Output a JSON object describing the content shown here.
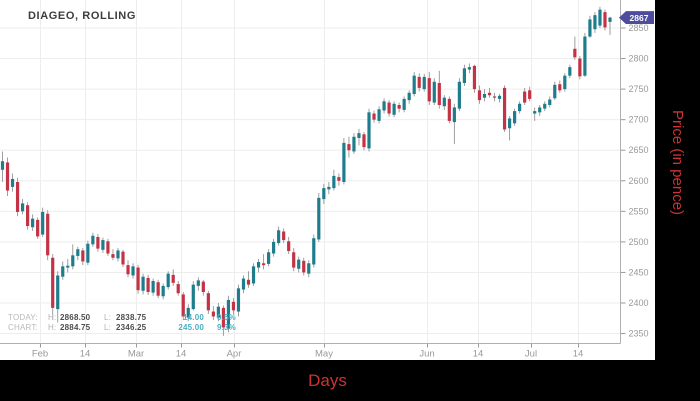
{
  "title": "DIAGEO, ROLLING",
  "price_badge": "2867",
  "axis_titles": {
    "x": "Days",
    "y": "Price (in pence)"
  },
  "legend": {
    "today": {
      "label": "TODAY:",
      "h_label": "H:",
      "h": "2868.50",
      "l_label": "L:",
      "l": "2838.75",
      "change": "14.00",
      "pct": "0.5%"
    },
    "chart": {
      "label": "CHART:",
      "h_label": "H:",
      "h": "2884.75",
      "l_label": "L:",
      "l": "2346.25",
      "change": "245.00",
      "pct": "9.3%"
    }
  },
  "colors": {
    "up_candle": "#1e7d8c",
    "down_candle": "#c43246",
    "wick": "#949494",
    "grid": "#ededed",
    "axis": "#b0b0b0",
    "tick_text": "#999999",
    "badge_bg": "#4e4c9d",
    "axis_title_red": "#cc3333",
    "change_teal": "#49b0c2"
  },
  "chart_data": {
    "type": "candlestick",
    "title": "DIAGEO, ROLLING",
    "xlabel": "Days",
    "ylabel": "Price (in pence)",
    "ylim": [
      2335,
      2896
    ],
    "grid": true,
    "last_price": 2867,
    "today_high": 2868.5,
    "today_low": 2838.75,
    "chart_high": 2884.75,
    "chart_low": 2346.25,
    "y_ticks": [
      2850,
      2800,
      2750,
      2700,
      2650,
      2600,
      2550,
      2500,
      2450,
      2400,
      2350
    ],
    "x_ticks": [
      {
        "label": "Feb",
        "x": 40
      },
      {
        "label": "14",
        "x": 85
      },
      {
        "label": "Mar",
        "x": 136
      },
      {
        "label": "14",
        "x": 181
      },
      {
        "label": "Apr",
        "x": 234
      },
      {
        "label": "May",
        "x": 324
      },
      {
        "label": "Jun",
        "x": 427
      },
      {
        "label": "14",
        "x": 478
      },
      {
        "label": "Jul",
        "x": 531
      },
      {
        "label": "14",
        "x": 578
      }
    ],
    "candles": [
      [
        2618,
        2648,
        2598,
        2632
      ],
      [
        2630,
        2638,
        2575,
        2584
      ],
      [
        2590,
        2612,
        2582,
        2603
      ],
      [
        2598,
        2605,
        2542,
        2549
      ],
      [
        2550,
        2570,
        2545,
        2563
      ],
      [
        2560,
        2565,
        2520,
        2526
      ],
      [
        2524,
        2545,
        2518,
        2538
      ],
      [
        2536,
        2540,
        2505,
        2509
      ],
      [
        2512,
        2556,
        2508,
        2549
      ],
      [
        2546,
        2552,
        2470,
        2478
      ],
      [
        2474,
        2480,
        2372,
        2392
      ],
      [
        2390,
        2452,
        2368,
        2445
      ],
      [
        2443,
        2468,
        2438,
        2460
      ],
      [
        2458,
        2472,
        2450,
        2461
      ],
      [
        2460,
        2496,
        2455,
        2478
      ],
      [
        2477,
        2492,
        2470,
        2488
      ],
      [
        2486,
        2490,
        2462,
        2468
      ],
      [
        2466,
        2502,
        2462,
        2497
      ],
      [
        2496,
        2515,
        2492,
        2510
      ],
      [
        2508,
        2513,
        2484,
        2489
      ],
      [
        2487,
        2507,
        2482,
        2503
      ],
      [
        2501,
        2505,
        2477,
        2481
      ],
      [
        2480,
        2488,
        2470,
        2474
      ],
      [
        2473,
        2490,
        2468,
        2486
      ],
      [
        2484,
        2487,
        2459,
        2463
      ],
      [
        2462,
        2470,
        2442,
        2447
      ],
      [
        2445,
        2465,
        2440,
        2460
      ],
      [
        2458,
        2462,
        2415,
        2421
      ],
      [
        2420,
        2448,
        2414,
        2443
      ],
      [
        2441,
        2446,
        2413,
        2418
      ],
      [
        2417,
        2440,
        2412,
        2436
      ],
      [
        2434,
        2438,
        2408,
        2412
      ],
      [
        2411,
        2432,
        2406,
        2428
      ],
      [
        2426,
        2452,
        2422,
        2448
      ],
      [
        2446,
        2455,
        2428,
        2433
      ],
      [
        2431,
        2436,
        2412,
        2416
      ],
      [
        2414,
        2418,
        2372,
        2378
      ],
      [
        2376,
        2398,
        2370,
        2392
      ],
      [
        2390,
        2436,
        2388,
        2430
      ],
      [
        2428,
        2442,
        2420,
        2437
      ],
      [
        2435,
        2438,
        2412,
        2418
      ],
      [
        2416,
        2420,
        2382,
        2388
      ],
      [
        2386,
        2395,
        2372,
        2378
      ],
      [
        2376,
        2400,
        2370,
        2394
      ],
      [
        2392,
        2396,
        2346.25,
        2360
      ],
      [
        2358,
        2412,
        2352,
        2405
      ],
      [
        2402,
        2408,
        2382,
        2388
      ],
      [
        2386,
        2430,
        2378,
        2424
      ],
      [
        2422,
        2445,
        2416,
        2440
      ],
      [
        2438,
        2452,
        2425,
        2430
      ],
      [
        2432,
        2465,
        2428,
        2460
      ],
      [
        2458,
        2472,
        2450,
        2467
      ],
      [
        2465,
        2480,
        2455,
        2462
      ],
      [
        2464,
        2488,
        2460,
        2483
      ],
      [
        2481,
        2505,
        2476,
        2500
      ],
      [
        2498,
        2525,
        2494,
        2519
      ],
      [
        2517,
        2522,
        2498,
        2503
      ],
      [
        2501,
        2508,
        2480,
        2485
      ],
      [
        2483,
        2490,
        2452,
        2458
      ],
      [
        2456,
        2476,
        2450,
        2471
      ],
      [
        2469,
        2474,
        2445,
        2450
      ],
      [
        2448,
        2470,
        2442,
        2465
      ],
      [
        2463,
        2512,
        2458,
        2506
      ],
      [
        2504,
        2580,
        2500,
        2572
      ],
      [
        2570,
        2595,
        2562,
        2588
      ],
      [
        2586,
        2598,
        2578,
        2590
      ],
      [
        2588,
        2618,
        2584,
        2608
      ],
      [
        2606,
        2612,
        2592,
        2600
      ],
      [
        2598,
        2670,
        2594,
        2662
      ],
      [
        2660,
        2672,
        2638,
        2650
      ],
      [
        2648,
        2678,
        2644,
        2672
      ],
      [
        2670,
        2685,
        2658,
        2678
      ],
      [
        2676,
        2680,
        2650,
        2655
      ],
      [
        2653,
        2718,
        2648,
        2712
      ],
      [
        2710,
        2715,
        2695,
        2700
      ],
      [
        2698,
        2722,
        2694,
        2717
      ],
      [
        2715,
        2735,
        2710,
        2730
      ],
      [
        2728,
        2732,
        2705,
        2710
      ],
      [
        2708,
        2730,
        2704,
        2726
      ],
      [
        2724,
        2728,
        2712,
        2718
      ],
      [
        2716,
        2738,
        2712,
        2734
      ],
      [
        2732,
        2748,
        2726,
        2744
      ],
      [
        2742,
        2778,
        2738,
        2772
      ],
      [
        2770,
        2776,
        2746,
        2752
      ],
      [
        2750,
        2775,
        2746,
        2770
      ],
      [
        2768,
        2778,
        2724,
        2730
      ],
      [
        2728,
        2768,
        2724,
        2762
      ],
      [
        2760,
        2780,
        2718,
        2724
      ],
      [
        2722,
        2740,
        2716,
        2736
      ],
      [
        2734,
        2738,
        2694,
        2698
      ],
      [
        2696,
        2726,
        2660,
        2720
      ],
      [
        2718,
        2768,
        2714,
        2762
      ],
      [
        2760,
        2790,
        2755,
        2784
      ],
      [
        2782,
        2792,
        2776,
        2786
      ],
      [
        2788,
        2790,
        2744,
        2750
      ],
      [
        2748,
        2756,
        2726,
        2732
      ],
      [
        2736,
        2750,
        2730,
        2742
      ],
      [
        2744,
        2752,
        2736,
        2740
      ],
      [
        2738,
        2744,
        2730,
        2736
      ],
      [
        2734,
        2742,
        2728,
        2739
      ],
      [
        2752,
        2756,
        2680,
        2684
      ],
      [
        2686,
        2706,
        2666,
        2702
      ],
      [
        2694,
        2718,
        2690,
        2714
      ],
      [
        2714,
        2730,
        2710,
        2726
      ],
      [
        2746,
        2752,
        2724,
        2728
      ],
      [
        2748,
        2754,
        2730,
        2734
      ],
      [
        2710,
        2720,
        2698,
        2714
      ],
      [
        2712,
        2724,
        2706,
        2720
      ],
      [
        2718,
        2730,
        2714,
        2726
      ],
      [
        2724,
        2738,
        2720,
        2733
      ],
      [
        2735,
        2762,
        2732,
        2757
      ],
      [
        2758,
        2764,
        2744,
        2748
      ],
      [
        2750,
        2776,
        2746,
        2772
      ],
      [
        2772,
        2790,
        2768,
        2786
      ],
      [
        2816,
        2836,
        2798,
        2802
      ],
      [
        2800,
        2804,
        2766,
        2771
      ],
      [
        2772,
        2842,
        2770,
        2836
      ],
      [
        2836,
        2870,
        2834,
        2864
      ],
      [
        2848,
        2876,
        2842,
        2871
      ],
      [
        2854,
        2884.75,
        2850,
        2880
      ],
      [
        2876,
        2880,
        2846,
        2851
      ],
      [
        2860,
        2868.5,
        2838.75,
        2867
      ]
    ]
  }
}
